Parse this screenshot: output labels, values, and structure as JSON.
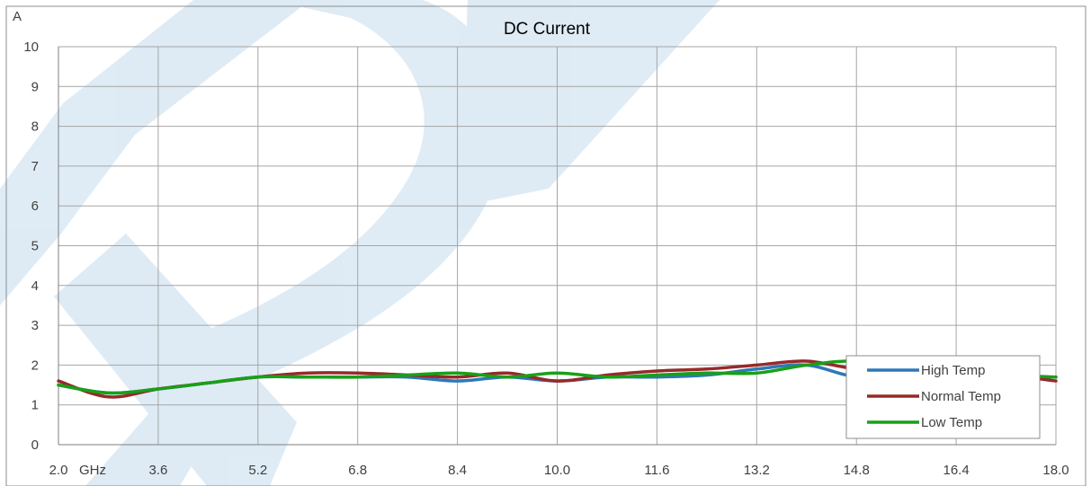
{
  "colors": {
    "grid": "#a6a6a6",
    "frame": "#8c8c8c",
    "watermark": "#3b86c4",
    "high": "#2e78b9",
    "normal": "#962a2a",
    "low": "#18a018"
  },
  "chart_data": {
    "type": "line",
    "title": "DC Current",
    "ylabel": "A",
    "xunit": "GHz",
    "xlim": [
      2.0,
      18.0
    ],
    "ylim": [
      0,
      10
    ],
    "x_ticks": [
      2.0,
      3.6,
      5.2,
      6.8,
      8.4,
      10.0,
      11.6,
      13.2,
      14.8,
      16.4,
      18.0
    ],
    "x_tick_labels": [
      "2.0",
      "3.6",
      "5.2",
      "6.8",
      "8.4",
      "10.0",
      "11.6",
      "13.2",
      "14.8",
      "16.4",
      "18.0"
    ],
    "y_ticks": [
      0,
      1,
      2,
      3,
      4,
      5,
      6,
      7,
      8,
      9,
      10
    ],
    "y_tick_labels": [
      "0",
      "1",
      "2",
      "3",
      "4",
      "5",
      "6",
      "7",
      "8",
      "9",
      "10"
    ],
    "grid": true,
    "legend_position": "bottom-right",
    "series": [
      {
        "name": "High Temp",
        "color_key": "high",
        "x": [
          2.0,
          2.8,
          3.6,
          4.4,
          5.2,
          6.0,
          6.8,
          7.6,
          8.4,
          9.2,
          10.0,
          10.8,
          11.6,
          12.4,
          13.2,
          14.0,
          14.8,
          15.6,
          16.4,
          17.2,
          18.0
        ],
        "y": [
          1.5,
          1.3,
          1.4,
          1.55,
          1.7,
          1.7,
          1.7,
          1.7,
          1.6,
          1.7,
          1.6,
          1.7,
          1.7,
          1.75,
          1.9,
          2.0,
          1.7,
          1.75,
          1.75,
          1.7,
          1.7
        ]
      },
      {
        "name": "Normal Temp",
        "color_key": "normal",
        "x": [
          2.0,
          2.8,
          3.6,
          4.4,
          5.2,
          6.0,
          6.8,
          7.6,
          8.4,
          9.2,
          10.0,
          10.8,
          11.6,
          12.4,
          13.2,
          14.0,
          14.8,
          15.6,
          16.4,
          17.2,
          18.0
        ],
        "y": [
          1.6,
          1.2,
          1.4,
          1.55,
          1.7,
          1.8,
          1.8,
          1.75,
          1.7,
          1.8,
          1.6,
          1.75,
          1.85,
          1.9,
          2.0,
          2.1,
          1.9,
          1.85,
          1.8,
          1.75,
          1.6
        ]
      },
      {
        "name": "Low Temp",
        "color_key": "low",
        "x": [
          2.0,
          2.8,
          3.6,
          4.4,
          5.2,
          6.0,
          6.8,
          7.6,
          8.4,
          9.2,
          10.0,
          10.8,
          11.6,
          12.4,
          13.2,
          14.0,
          14.8,
          15.6,
          16.4,
          17.2,
          18.0
        ],
        "y": [
          1.5,
          1.3,
          1.4,
          1.55,
          1.7,
          1.7,
          1.7,
          1.75,
          1.8,
          1.7,
          1.8,
          1.7,
          1.75,
          1.8,
          1.8,
          2.0,
          2.1,
          1.9,
          1.8,
          1.75,
          1.7
        ]
      }
    ]
  }
}
